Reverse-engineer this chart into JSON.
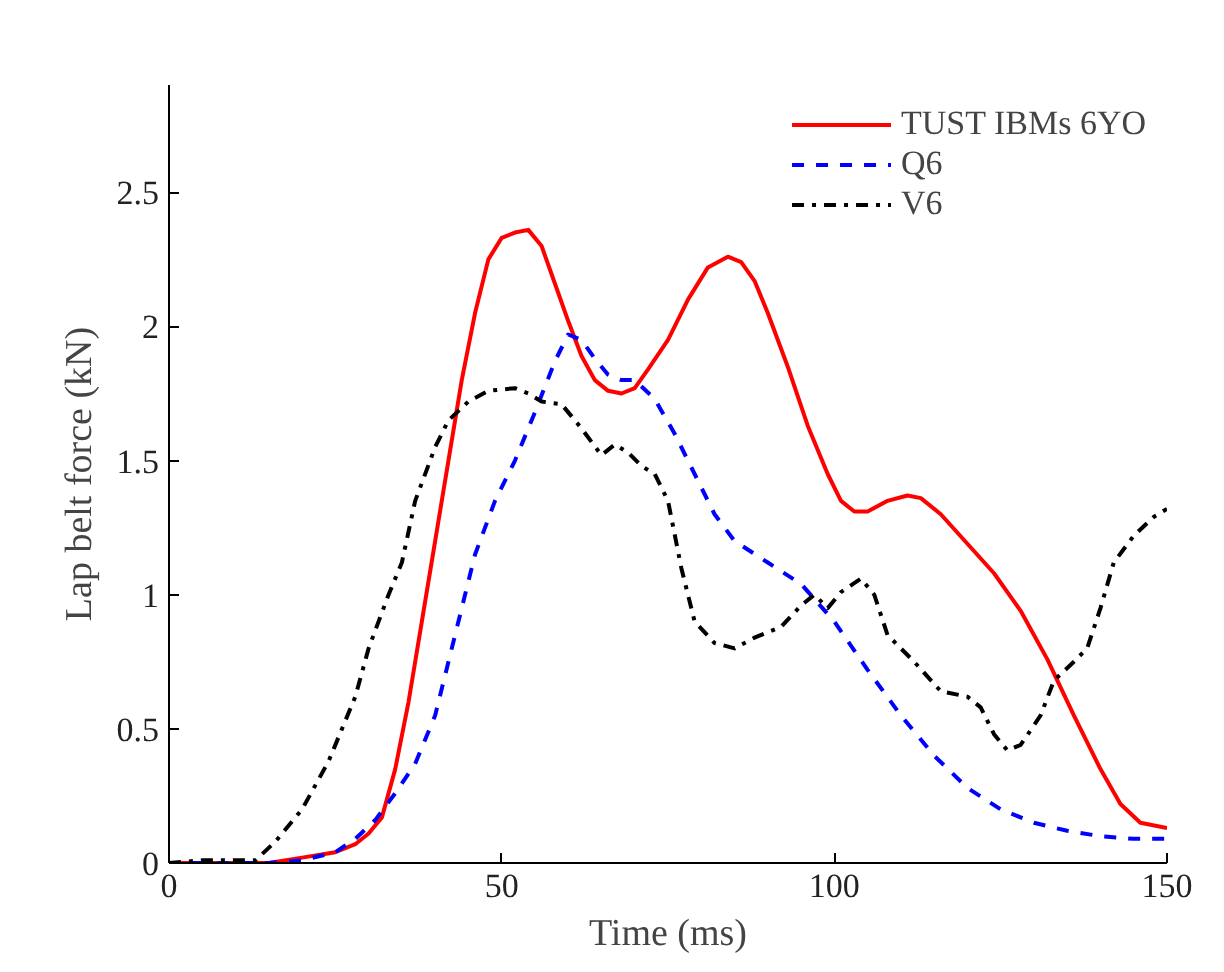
{
  "chart_data": {
    "type": "line",
    "xlabel": "Time (ms)",
    "ylabel": "Lap belt force (kN)",
    "xlim": [
      0,
      150
    ],
    "xticks": [
      0,
      50,
      100,
      150
    ],
    "ylim": [
      0,
      2.9
    ],
    "yticks": [
      0,
      0.5,
      1,
      1.5,
      2,
      2.5
    ],
    "grid": false,
    "legend": "top right",
    "marker": "none",
    "series": [
      {
        "name": "TUST IBMs 6YO",
        "color": "#ff0000",
        "line_style": "solid",
        "x": [
          0,
          15,
          20,
          25,
          28,
          30,
          32,
          34,
          36,
          38,
          40,
          42,
          44,
          46,
          48,
          50,
          52,
          54,
          56,
          58,
          60,
          62,
          64,
          66,
          68,
          70,
          72,
          75,
          78,
          81,
          84,
          86,
          88,
          90,
          93,
          96,
          99,
          101,
          103,
          105,
          108,
          111,
          113,
          116,
          120,
          124,
          128,
          132,
          136,
          140,
          143,
          146,
          150
        ],
        "values": [
          0,
          0,
          0.02,
          0.04,
          0.07,
          0.11,
          0.17,
          0.35,
          0.6,
          0.9,
          1.2,
          1.5,
          1.8,
          2.05,
          2.25,
          2.33,
          2.35,
          2.36,
          2.3,
          2.16,
          2.02,
          1.89,
          1.8,
          1.76,
          1.75,
          1.77,
          1.84,
          1.95,
          2.1,
          2.22,
          2.26,
          2.24,
          2.17,
          2.05,
          1.85,
          1.63,
          1.45,
          1.35,
          1.31,
          1.31,
          1.35,
          1.37,
          1.36,
          1.3,
          1.19,
          1.08,
          0.94,
          0.76,
          0.55,
          0.35,
          0.22,
          0.15,
          0.13
        ]
      },
      {
        "name": "Q6",
        "color": "#0000ff",
        "line_style": "dashed",
        "x": [
          0,
          15,
          20,
          25,
          28,
          31,
          34,
          37,
          40,
          43,
          46,
          49,
          52,
          55,
          58,
          60,
          62,
          64,
          66,
          68,
          70,
          73,
          76,
          79,
          82,
          85,
          90,
          95,
          100,
          105,
          110,
          115,
          120,
          125,
          130,
          135,
          140,
          145,
          150
        ],
        "values": [
          0,
          0,
          0.01,
          0.04,
          0.09,
          0.16,
          0.26,
          0.37,
          0.55,
          0.85,
          1.15,
          1.35,
          1.5,
          1.68,
          1.87,
          1.97,
          1.95,
          1.88,
          1.82,
          1.8,
          1.8,
          1.73,
          1.6,
          1.45,
          1.3,
          1.2,
          1.12,
          1.04,
          0.9,
          0.72,
          0.55,
          0.4,
          0.28,
          0.2,
          0.15,
          0.12,
          0.1,
          0.09,
          0.09
        ]
      },
      {
        "name": "V6",
        "color": "#000000",
        "line_style": "dashdot",
        "x": [
          0,
          5,
          13,
          16,
          20,
          24,
          28,
          30,
          33,
          35,
          37,
          40,
          42,
          45,
          48,
          52,
          54,
          56,
          59,
          62,
          65,
          67,
          69,
          71,
          73,
          75,
          77,
          79,
          82,
          85,
          88,
          92,
          95,
          97,
          99,
          101,
          104,
          106,
          108,
          112,
          116,
          120,
          122,
          124,
          126,
          128,
          131,
          133,
          136,
          138,
          140,
          142,
          145,
          148,
          150
        ],
        "values": [
          0,
          0.01,
          0.01,
          0.08,
          0.2,
          0.38,
          0.62,
          0.8,
          1.0,
          1.12,
          1.35,
          1.55,
          1.65,
          1.72,
          1.76,
          1.77,
          1.75,
          1.72,
          1.71,
          1.62,
          1.52,
          1.56,
          1.53,
          1.48,
          1.45,
          1.35,
          1.1,
          0.9,
          0.82,
          0.8,
          0.84,
          0.88,
          0.96,
          1.0,
          0.95,
          1.01,
          1.06,
          1.0,
          0.85,
          0.75,
          0.64,
          0.62,
          0.58,
          0.48,
          0.42,
          0.44,
          0.55,
          0.68,
          0.75,
          0.8,
          0.95,
          1.12,
          1.22,
          1.29,
          1.32
        ]
      }
    ]
  }
}
